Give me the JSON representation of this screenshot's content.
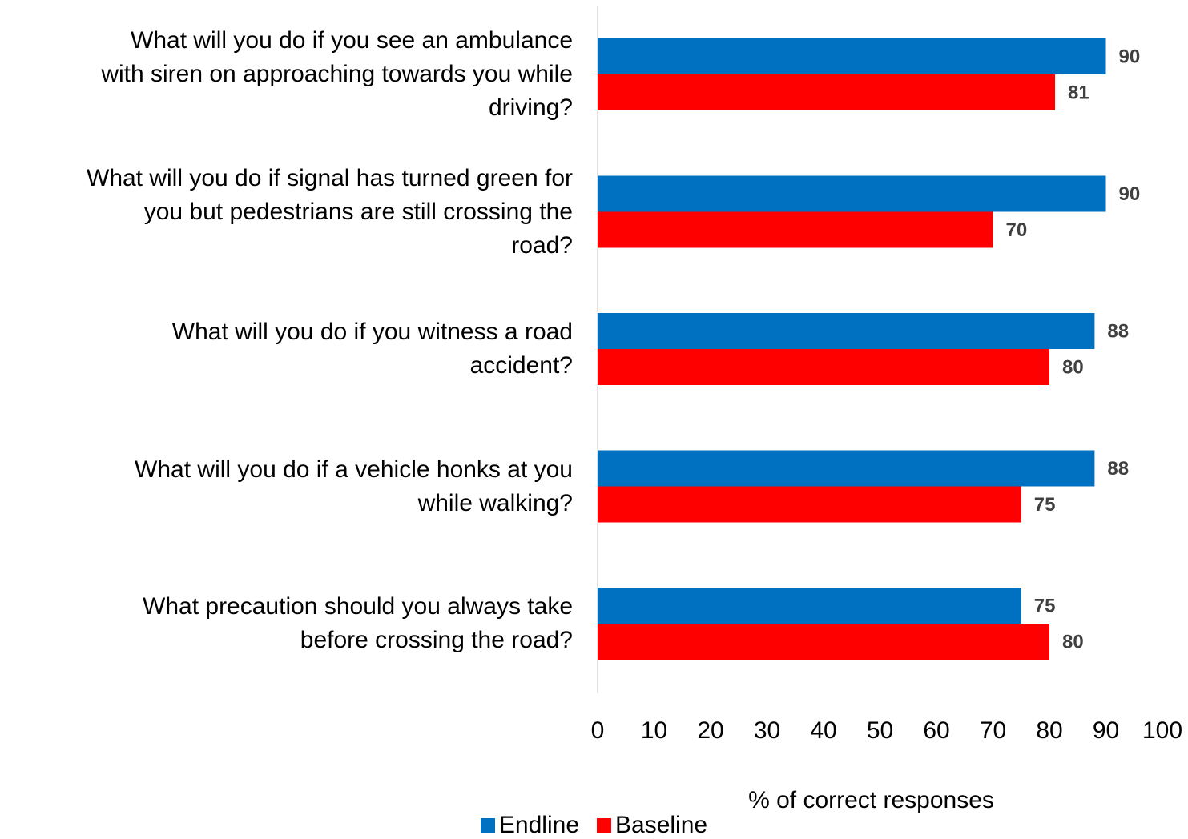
{
  "chart_data": {
    "type": "bar",
    "orientation": "horizontal",
    "categories": [
      "What will you do if you see an ambulance with siren on approaching towards you while driving?",
      "What will you do if signal has turned green for you but pedestrians are still crossing the road?",
      "What will you do if you witness a road accident?",
      "What will you do if a vehicle honks at you while walking?",
      "What precaution should you always take before crossing the road?"
    ],
    "category_lines": [
      [
        "What will you do if you see an ambulance",
        "with siren on approaching towards you while",
        "driving?"
      ],
      [
        "What will you do if signal has turned green for",
        "you but pedestrians are still crossing the",
        "road?"
      ],
      [
        "What will you do if you witness a road",
        "accident?"
      ],
      [
        "What will you do if a vehicle honks at you",
        "while walking?"
      ],
      [
        "What precaution should you always take",
        "before crossing the road?"
      ]
    ],
    "series": [
      {
        "name": "Endline",
        "color": "#0070C0",
        "values": [
          90,
          90,
          88,
          88,
          75
        ]
      },
      {
        "name": "Baseline",
        "color": "#FF0000",
        "values": [
          81,
          70,
          80,
          75,
          80
        ]
      }
    ],
    "xlabel": "% of correct responses",
    "xlim": [
      0,
      100
    ],
    "xticks": [
      0,
      10,
      20,
      30,
      40,
      50,
      60,
      70,
      80,
      90,
      100
    ],
    "data_labels": true,
    "grid": false,
    "legend_position": "bottom"
  }
}
